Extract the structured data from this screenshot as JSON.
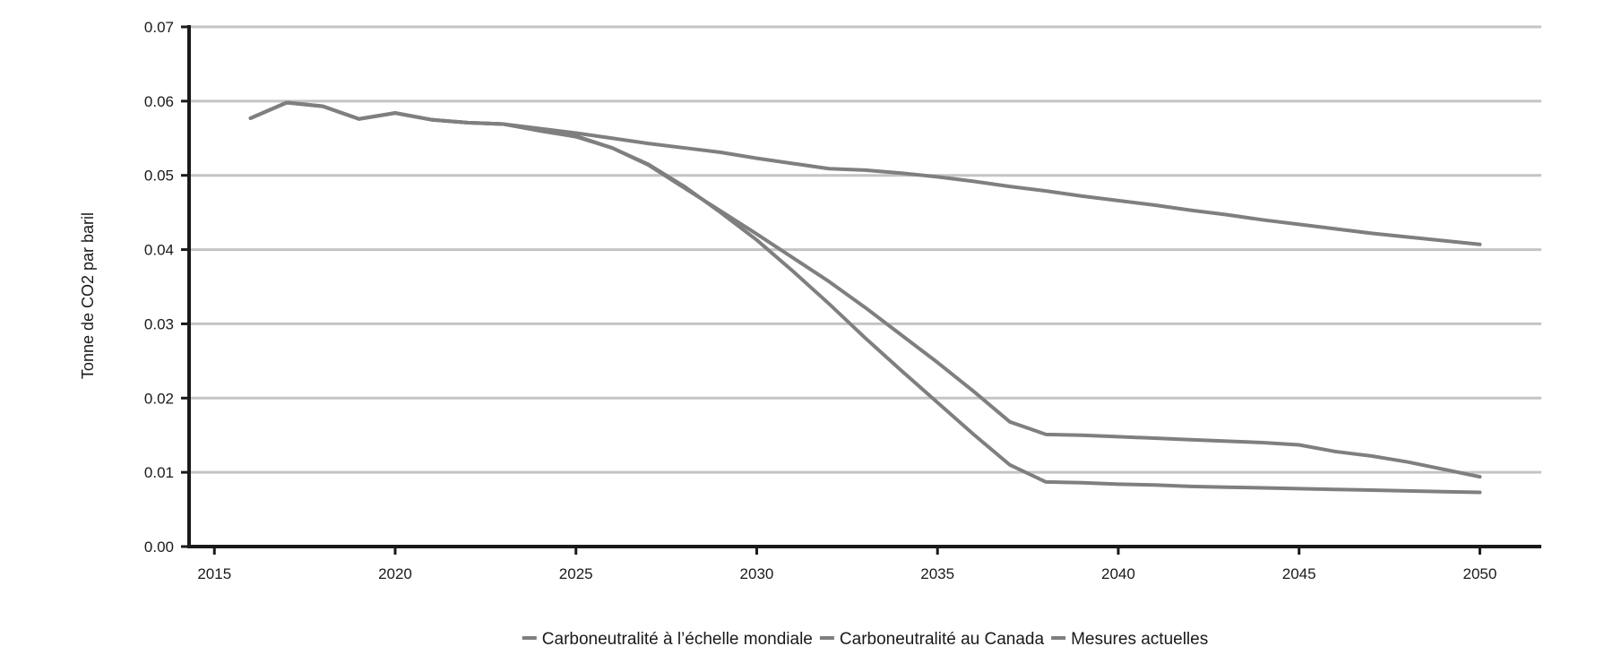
{
  "chart_data": {
    "type": "line",
    "title": "",
    "xlabel": "",
    "ylabel": "Tonne de CO2 par baril",
    "xlim": [
      2014.3,
      2051.7
    ],
    "ylim": [
      0,
      0.07
    ],
    "x_ticks": [
      2015,
      2020,
      2025,
      2030,
      2035,
      2040,
      2045,
      2050
    ],
    "y_ticks": [
      0,
      0.01,
      0.02,
      0.03,
      0.04,
      0.05,
      0.06,
      0.07
    ],
    "x_tick_labels": [
      "2015",
      "2020",
      "2025",
      "2030",
      "2035",
      "2040",
      "2045",
      "2050"
    ],
    "y_tick_labels": [
      "0.00",
      "0.01",
      "0.02",
      "0.03",
      "0.04",
      "0.05",
      "0.06",
      "0.07"
    ],
    "grid": "horizontal",
    "legend_position": "bottom",
    "line_color": "#7f7f7f",
    "grid_color": "#c4c4c4",
    "axis_color": "#1a1a1a",
    "series": [
      {
        "name": "Carboneutralité à l’échelle mondiale",
        "x": [
          2016,
          2017,
          2018,
          2019,
          2020,
          2021,
          2022,
          2023,
          2024,
          2025,
          2026,
          2027,
          2028,
          2029,
          2030,
          2031,
          2032,
          2033,
          2034,
          2035,
          2036,
          2037,
          2038,
          2039,
          2040,
          2041,
          2042,
          2043,
          2044,
          2045,
          2046,
          2047,
          2048,
          2049,
          2050
        ],
        "y": [
          0.0577,
          0.0598,
          0.0593,
          0.0576,
          0.0584,
          0.0575,
          0.0571,
          0.0569,
          0.056,
          0.0552,
          0.0537,
          0.0515,
          0.0485,
          0.045,
          0.0413,
          0.0371,
          0.0327,
          0.0281,
          0.0237,
          0.0194,
          0.0151,
          0.011,
          0.0087,
          0.0086,
          0.0084,
          0.0083,
          0.0081,
          0.008,
          0.0079,
          0.0078,
          0.0077,
          0.0076,
          0.0075,
          0.0074,
          0.0073
        ]
      },
      {
        "name": "Carboneutralité au Canada",
        "x": [
          2016,
          2017,
          2018,
          2019,
          2020,
          2021,
          2022,
          2023,
          2024,
          2025,
          2026,
          2027,
          2028,
          2029,
          2030,
          2031,
          2032,
          2033,
          2034,
          2035,
          2036,
          2037,
          2038,
          2039,
          2040,
          2041,
          2042,
          2043,
          2044,
          2045,
          2046,
          2047,
          2048,
          2049,
          2050
        ],
        "y": [
          0.0577,
          0.0598,
          0.0593,
          0.0576,
          0.0584,
          0.0575,
          0.0571,
          0.0569,
          0.0561,
          0.0553,
          0.0537,
          0.0514,
          0.0483,
          0.0452,
          0.0421,
          0.0389,
          0.0357,
          0.0322,
          0.0285,
          0.0248,
          0.0209,
          0.0168,
          0.0151,
          0.015,
          0.0148,
          0.0146,
          0.0144,
          0.0142,
          0.014,
          0.0137,
          0.0128,
          0.0122,
          0.0114,
          0.0104,
          0.0094
        ]
      },
      {
        "name": "Mesures actuelles",
        "x": [
          2016,
          2017,
          2018,
          2019,
          2020,
          2021,
          2022,
          2023,
          2024,
          2025,
          2026,
          2027,
          2028,
          2029,
          2030,
          2031,
          2032,
          2033,
          2034,
          2035,
          2036,
          2037,
          2038,
          2039,
          2040,
          2041,
          2042,
          2043,
          2044,
          2045,
          2046,
          2047,
          2048,
          2049,
          2050
        ],
        "y": [
          0.0577,
          0.0598,
          0.0593,
          0.0576,
          0.0584,
          0.0575,
          0.0571,
          0.0569,
          0.0563,
          0.0557,
          0.055,
          0.0543,
          0.0537,
          0.0531,
          0.0523,
          0.0516,
          0.0509,
          0.0507,
          0.0503,
          0.0498,
          0.0492,
          0.0485,
          0.0479,
          0.0472,
          0.0466,
          0.046,
          0.0453,
          0.0447,
          0.044,
          0.0434,
          0.0428,
          0.0422,
          0.0417,
          0.0412,
          0.0407
        ]
      }
    ]
  }
}
